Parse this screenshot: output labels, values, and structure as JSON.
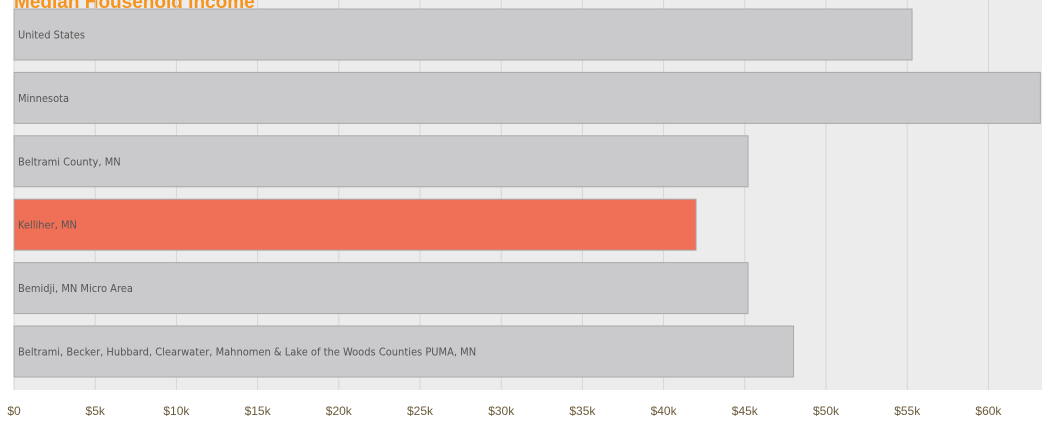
{
  "chart_data": {
    "type": "hbar",
    "title": "Median Household Income",
    "categories": [
      "United States",
      "Minnesota",
      "Beltrami County, MN",
      "Kelliher, MN",
      "Bemidji, MN Micro Area",
      "Beltrami, Becker, Hubbard, Clearwater, Mahnomen & Lake of the Woods Counties PUMA, MN"
    ],
    "values": [
      55300,
      63200,
      45200,
      42000,
      45200,
      48000
    ],
    "colors": [
      "#cacacc",
      "#cacacc",
      "#cacacc",
      "#f07057",
      "#cacacc",
      "#cacacc"
    ],
    "xlim": [
      0,
      63300
    ],
    "xticks": [
      {
        "value": 0,
        "label": "$0"
      },
      {
        "value": 5000,
        "label": "$5k"
      },
      {
        "value": 10000,
        "label": "$10k"
      },
      {
        "value": 15000,
        "label": "$15k"
      },
      {
        "value": 20000,
        "label": "$20k"
      },
      {
        "value": 25000,
        "label": "$25k"
      },
      {
        "value": 30000,
        "label": "$30k"
      },
      {
        "value": 35000,
        "label": "$35k"
      },
      {
        "value": 40000,
        "label": "$40k"
      },
      {
        "value": 45000,
        "label": "$45k"
      },
      {
        "value": 50000,
        "label": "$50k"
      },
      {
        "value": 55000,
        "label": "$55k"
      },
      {
        "value": 60000,
        "label": "$60k"
      }
    ],
    "grid": true
  }
}
